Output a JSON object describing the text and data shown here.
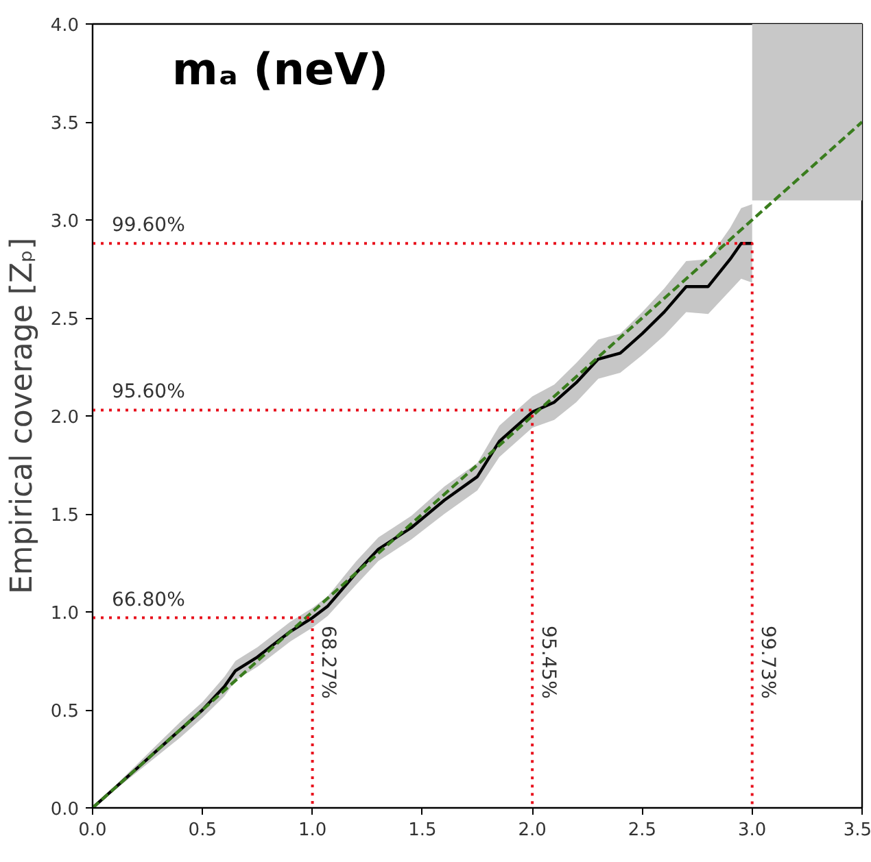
{
  "chart_data": {
    "type": "line",
    "title": "mₐ (neV)",
    "ylabel": "Empirical coverage [Zₚ]",
    "xlim": [
      0,
      3.5
    ],
    "ylim": [
      0,
      4.0
    ],
    "xticks": [
      {
        "value": 0,
        "label": "0.0"
      },
      {
        "value": 0.5,
        "label": "0.5"
      },
      {
        "value": 1,
        "label": "1.0"
      },
      {
        "value": 1.5,
        "label": "1.5"
      },
      {
        "value": 2,
        "label": "2.0"
      },
      {
        "value": 2.5,
        "label": "2.5"
      },
      {
        "value": 3,
        "label": "3.0"
      },
      {
        "value": 3.5,
        "label": "3.5"
      }
    ],
    "yticks": [
      {
        "value": 0,
        "label": "0.0"
      },
      {
        "value": 0.5,
        "label": "0.5"
      },
      {
        "value": 1,
        "label": "1.0"
      },
      {
        "value": 1.5,
        "label": "1.5"
      },
      {
        "value": 2,
        "label": "2.0"
      },
      {
        "value": 2.5,
        "label": "2.5"
      },
      {
        "value": 3,
        "label": "3.0"
      },
      {
        "value": 3.5,
        "label": "3.5"
      },
      {
        "value": 4,
        "label": "4.0"
      }
    ],
    "grid": false,
    "series": [
      {
        "type": "bar",
        "color": "#c8c8c8",
        "x": [
          3.25
        ],
        "base": [
          3.1
        ],
        "values": [
          0.9
        ]
      },
      {
        "color": "#000000",
        "line_style": "solid",
        "x": [
          0,
          0.1,
          0.2,
          0.3,
          0.4,
          0.5,
          0.6,
          0.65,
          0.75,
          0.9,
          1.0,
          1.07,
          1.2,
          1.3,
          1.45,
          1.6,
          1.75,
          1.85,
          2.0,
          2.1,
          2.2,
          2.3,
          2.4,
          2.5,
          2.6,
          2.7,
          2.8,
          2.9,
          2.95,
          3.0
        ],
        "values": [
          0,
          0.1,
          0.2,
          0.3,
          0.4,
          0.5,
          0.62,
          0.7,
          0.77,
          0.9,
          0.97,
          1.03,
          1.2,
          1.32,
          1.43,
          1.57,
          1.69,
          1.87,
          2.02,
          2.07,
          2.17,
          2.29,
          2.32,
          2.42,
          2.53,
          2.66,
          2.66,
          2.8,
          2.88,
          2.88
        ],
        "lower": [
          0,
          0.09,
          0.18,
          0.27,
          0.36,
          0.46,
          0.57,
          0.65,
          0.72,
          0.85,
          0.92,
          0.98,
          1.14,
          1.26,
          1.37,
          1.5,
          1.62,
          1.79,
          1.94,
          1.98,
          2.07,
          2.19,
          2.22,
          2.31,
          2.41,
          2.53,
          2.52,
          2.64,
          2.7,
          2.68
        ],
        "upper": [
          0,
          0.11,
          0.22,
          0.33,
          0.44,
          0.54,
          0.67,
          0.75,
          0.82,
          0.95,
          1.02,
          1.08,
          1.26,
          1.38,
          1.49,
          1.64,
          1.76,
          1.95,
          2.1,
          2.16,
          2.27,
          2.39,
          2.42,
          2.53,
          2.65,
          2.79,
          2.8,
          2.96,
          3.06,
          3.08
        ]
      },
      {
        "color": "#3a7d1e",
        "line_style": "dashed",
        "x": [
          0,
          3.5
        ],
        "values": [
          0,
          3.5
        ]
      },
      {
        "color": "#e8101c",
        "line_style": "dotted",
        "x": [
          0,
          1,
          1
        ],
        "values": [
          0.97,
          0.97,
          0
        ]
      },
      {
        "color": "#e8101c",
        "line_style": "dotted",
        "x": [
          0,
          2,
          2
        ],
        "values": [
          2.03,
          2.03,
          0
        ]
      },
      {
        "color": "#e8101c",
        "line_style": "dotted",
        "x": [
          0,
          3,
          3
        ],
        "values": [
          2.88,
          2.88,
          0
        ]
      }
    ],
    "annotations": [
      {
        "text": "66.80%",
        "x": 0,
        "y": 0.97
      },
      {
        "text": "95.60%",
        "x": 0,
        "y": 2.03
      },
      {
        "text": "99.60%",
        "x": 0,
        "y": 2.88
      },
      {
        "text": "68.27%",
        "x": 1.02,
        "y": 0.93
      },
      {
        "text": "95.45%",
        "x": 2.02,
        "y": 0.93
      },
      {
        "text": "99.73%",
        "x": 3.02,
        "y": 0.93
      }
    ]
  }
}
